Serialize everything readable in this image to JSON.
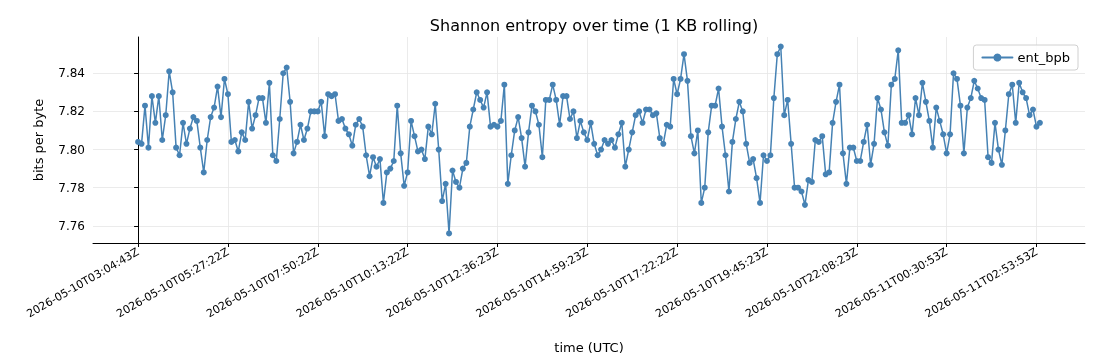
{
  "chart_data": {
    "type": "line",
    "title": "Shannon entropy over time (1 KB rolling)",
    "xlabel": "time (UTC)",
    "ylabel": "bits per byte",
    "categories": [
      "2026-05-10T03:04:43Z",
      null,
      null,
      null,
      null,
      null,
      null,
      null,
      null,
      null,
      null,
      null,
      null,
      null,
      null,
      null,
      null,
      null,
      null,
      null,
      null,
      null,
      null,
      null,
      null,
      null,
      "2026-05-10T05:27:22Z",
      null,
      null,
      null,
      null,
      null,
      null,
      null,
      null,
      null,
      null,
      null,
      null,
      null,
      null,
      null,
      null,
      null,
      null,
      null,
      null,
      null,
      null,
      null,
      null,
      null,
      "2026-05-10T07:50:22Z",
      null,
      null,
      null,
      null,
      null,
      null,
      null,
      null,
      null,
      null,
      null,
      null,
      null,
      null,
      null,
      null,
      null,
      null,
      null,
      null,
      null,
      null,
      null,
      null,
      null,
      "2026-05-10T10:13:22Z",
      null,
      null,
      null,
      null,
      null,
      null,
      null,
      null,
      null,
      null,
      null,
      null,
      null,
      null,
      null,
      null,
      null,
      null,
      null,
      null,
      null,
      null,
      null,
      null,
      null,
      "2026-05-10T12:36:23Z",
      null,
      null,
      null,
      null,
      null,
      null,
      null,
      null,
      null,
      null,
      null,
      null,
      null,
      null,
      null,
      null,
      null,
      null,
      null,
      null,
      null,
      null,
      null,
      null,
      null,
      "2026-05-10T14:59:23Z",
      null,
      null,
      null,
      null,
      null,
      null,
      null,
      null,
      null,
      null,
      null,
      null,
      null,
      null,
      null,
      null,
      null,
      null,
      null,
      null,
      null,
      null,
      null,
      null,
      null,
      "2026-05-10T17:22:22Z",
      null,
      null,
      null,
      null,
      null,
      null,
      null,
      null,
      null,
      null,
      null,
      null,
      null,
      null,
      null,
      null,
      null,
      null,
      null,
      null,
      null,
      null,
      null,
      null,
      null,
      "2026-05-10T19:45:23Z",
      null,
      null,
      null,
      null,
      null,
      null,
      null,
      null,
      null,
      null,
      null,
      null,
      null,
      null,
      null,
      null,
      null,
      null,
      null,
      null,
      null,
      null,
      null,
      null,
      null,
      "2026-05-10T22:08:23Z",
      null,
      null,
      null,
      null,
      null,
      null,
      null,
      null,
      null,
      null,
      null,
      null,
      null,
      null,
      null,
      null,
      null,
      null,
      null,
      null,
      null,
      null,
      null,
      null,
      null,
      "2026-05-11T00:30:53Z",
      null,
      null,
      null,
      null,
      null,
      null,
      null,
      null,
      null,
      null,
      null,
      null,
      null,
      null,
      null,
      null,
      null,
      null,
      null,
      null,
      null,
      null,
      null,
      null,
      null,
      "2026-05-11T02:53:53Z",
      null
    ],
    "series": [
      {
        "name": "ent_bpb",
        "color": "#4682b4",
        "values": [
          7.804,
          7.803,
          7.823,
          7.801,
          7.828,
          7.814,
          7.828,
          7.805,
          7.818,
          7.841,
          7.83,
          7.801,
          7.797,
          7.814,
          7.803,
          7.811,
          7.817,
          7.815,
          7.801,
          7.788,
          7.805,
          7.817,
          7.822,
          7.833,
          7.817,
          7.837,
          7.829,
          7.804,
          7.805,
          7.799,
          7.809,
          7.805,
          7.825,
          7.811,
          7.818,
          7.827,
          7.827,
          7.814,
          7.835,
          7.797,
          7.794,
          7.816,
          7.84,
          7.843,
          7.825,
          7.798,
          7.804,
          7.813,
          7.805,
          7.811,
          7.82,
          7.82,
          7.82,
          7.825,
          7.807,
          7.829,
          7.828,
          7.829,
          7.815,
          7.816,
          7.811,
          7.808,
          7.802,
          7.813,
          7.816,
          7.812,
          7.797,
          7.786,
          7.796,
          7.791,
          7.795,
          7.772,
          7.788,
          7.79,
          7.794,
          7.823,
          7.798,
          7.781,
          7.788,
          7.815,
          7.807,
          7.799,
          7.8,
          7.795,
          7.812,
          7.808,
          7.824,
          7.8,
          7.773,
          7.782,
          7.756,
          7.789,
          7.783,
          7.78,
          7.79,
          7.793,
          7.812,
          7.821,
          7.83,
          7.826,
          7.822,
          7.83,
          7.812,
          7.813,
          7.812,
          7.815,
          7.834,
          7.782,
          7.797,
          7.81,
          7.817,
          7.806,
          7.791,
          7.809,
          7.823,
          7.82,
          7.813,
          7.796,
          7.826,
          7.826,
          7.834,
          7.826,
          7.813,
          7.828,
          7.828,
          7.816,
          7.82,
          7.806,
          7.815,
          7.809,
          7.805,
          7.814,
          7.803,
          7.797,
          7.8,
          7.805,
          7.803,
          7.805,
          7.801,
          7.808,
          7.814,
          7.791,
          7.8,
          7.809,
          7.818,
          7.82,
          7.814,
          7.821,
          7.821,
          7.818,
          7.819,
          7.806,
          7.803,
          7.813,
          7.812,
          7.837,
          7.829,
          7.837,
          7.85,
          7.836,
          7.807,
          7.798,
          7.81,
          7.772,
          7.78,
          7.809,
          7.823,
          7.823,
          7.832,
          7.812,
          7.797,
          7.778,
          7.804,
          7.816,
          7.825,
          7.82,
          7.803,
          7.793,
          7.795,
          7.785,
          7.772,
          7.797,
          7.794,
          7.797,
          7.827,
          7.85,
          7.854,
          7.818,
          7.826,
          7.803,
          7.78,
          7.78,
          7.778,
          7.771,
          7.784,
          7.783,
          7.805,
          7.804,
          7.807,
          7.787,
          7.788,
          7.814,
          7.825,
          7.834,
          7.798,
          7.782,
          7.801,
          7.801,
          7.794,
          7.794,
          7.804,
          7.813,
          7.792,
          7.803,
          7.827,
          7.821,
          7.809,
          7.802,
          7.834,
          7.837,
          7.852,
          7.814,
          7.814,
          7.818,
          7.808,
          7.827,
          7.818,
          7.835,
          7.825,
          7.815,
          7.801,
          7.822,
          7.815,
          7.808,
          7.798,
          7.808,
          7.84,
          7.837,
          7.823,
          7.798,
          7.822,
          7.827,
          7.836,
          7.832,
          7.827,
          7.826,
          7.796,
          7.793,
          7.814,
          7.8,
          7.792,
          7.81,
          7.829,
          7.834,
          7.814,
          7.835,
          7.83,
          7.827,
          7.818,
          7.821,
          7.812,
          7.814
        ]
      }
    ],
    "ylim": [
      7.751,
      7.859
    ],
    "yticks": [
      {
        "value": 7.76,
        "label": "7.76"
      },
      {
        "value": 7.78,
        "label": "7.78"
      },
      {
        "value": 7.8,
        "label": "7.80"
      },
      {
        "value": 7.82,
        "label": "7.82"
      },
      {
        "value": 7.84,
        "label": "7.84"
      }
    ],
    "grid": true,
    "legend": "top right",
    "marker": "circle",
    "line_style": "solid"
  }
}
